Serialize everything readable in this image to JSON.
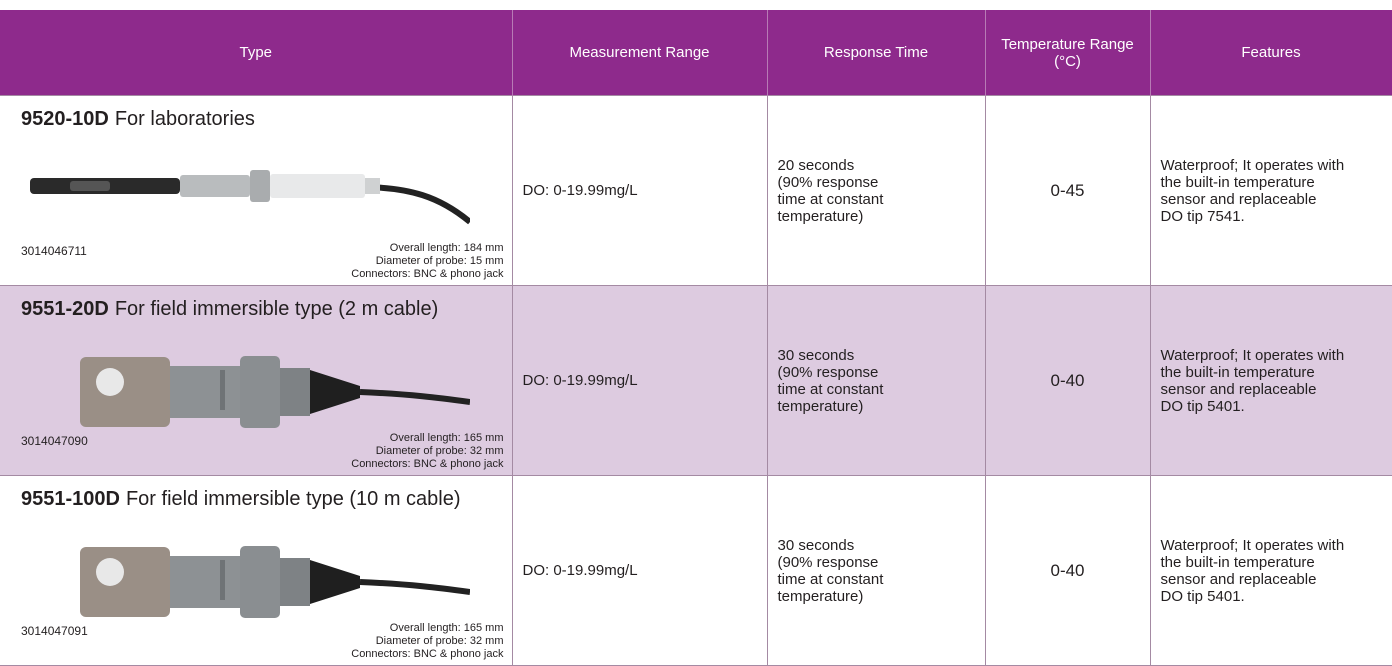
{
  "table": {
    "headers": [
      "Type",
      "Measurement Range",
      "Response Time",
      "Temperature Range (°C)",
      "Features"
    ],
    "rows": [
      {
        "model": "9520-10D",
        "description": "For laboratories",
        "part_number": "3014046711",
        "specs": [
          "Overall length: 184 mm",
          "Diameter of probe: 15 mm",
          "Connectors: BNC & phono jack"
        ],
        "measurement_range": "DO: 0-19.99mg/L",
        "response_time": [
          "20 seconds",
          "(90% response",
          "time at constant",
          "temperature)"
        ],
        "temperature_range": "0-45",
        "features": [
          "Waterproof; It operates with",
          "the built-in temperature",
          "sensor and replaceable",
          "DO tip 7541."
        ]
      },
      {
        "model": "9551-20D",
        "description": "For field immersible type (2 m cable)",
        "part_number": "3014047090",
        "specs": [
          "Overall length: 165 mm",
          "Diameter of probe: 32 mm",
          "Connectors: BNC & phono jack"
        ],
        "measurement_range": "DO: 0-19.99mg/L",
        "response_time": [
          "30 seconds",
          "(90% response",
          "time at constant",
          "temperature)"
        ],
        "temperature_range": "0-40",
        "features": [
          "Waterproof; It operates with",
          "the built-in temperature",
          "sensor and replaceable",
          "DO tip 5401."
        ]
      },
      {
        "model": "9551-100D",
        "description": "For field immersible type (10 m cable)",
        "part_number": "3014047091",
        "specs": [
          "Overall length: 165 mm",
          "Diameter of probe: 32 mm",
          "Connectors: BNC & phono jack"
        ],
        "measurement_range": "DO: 0-19.99mg/L",
        "response_time": [
          "30 seconds",
          "(90% response",
          "time at constant",
          "temperature)"
        ],
        "temperature_range": "0-40",
        "features": [
          "Waterproof; It operates with",
          "the built-in temperature",
          "sensor and replaceable",
          "DO tip 5401."
        ]
      }
    ]
  }
}
